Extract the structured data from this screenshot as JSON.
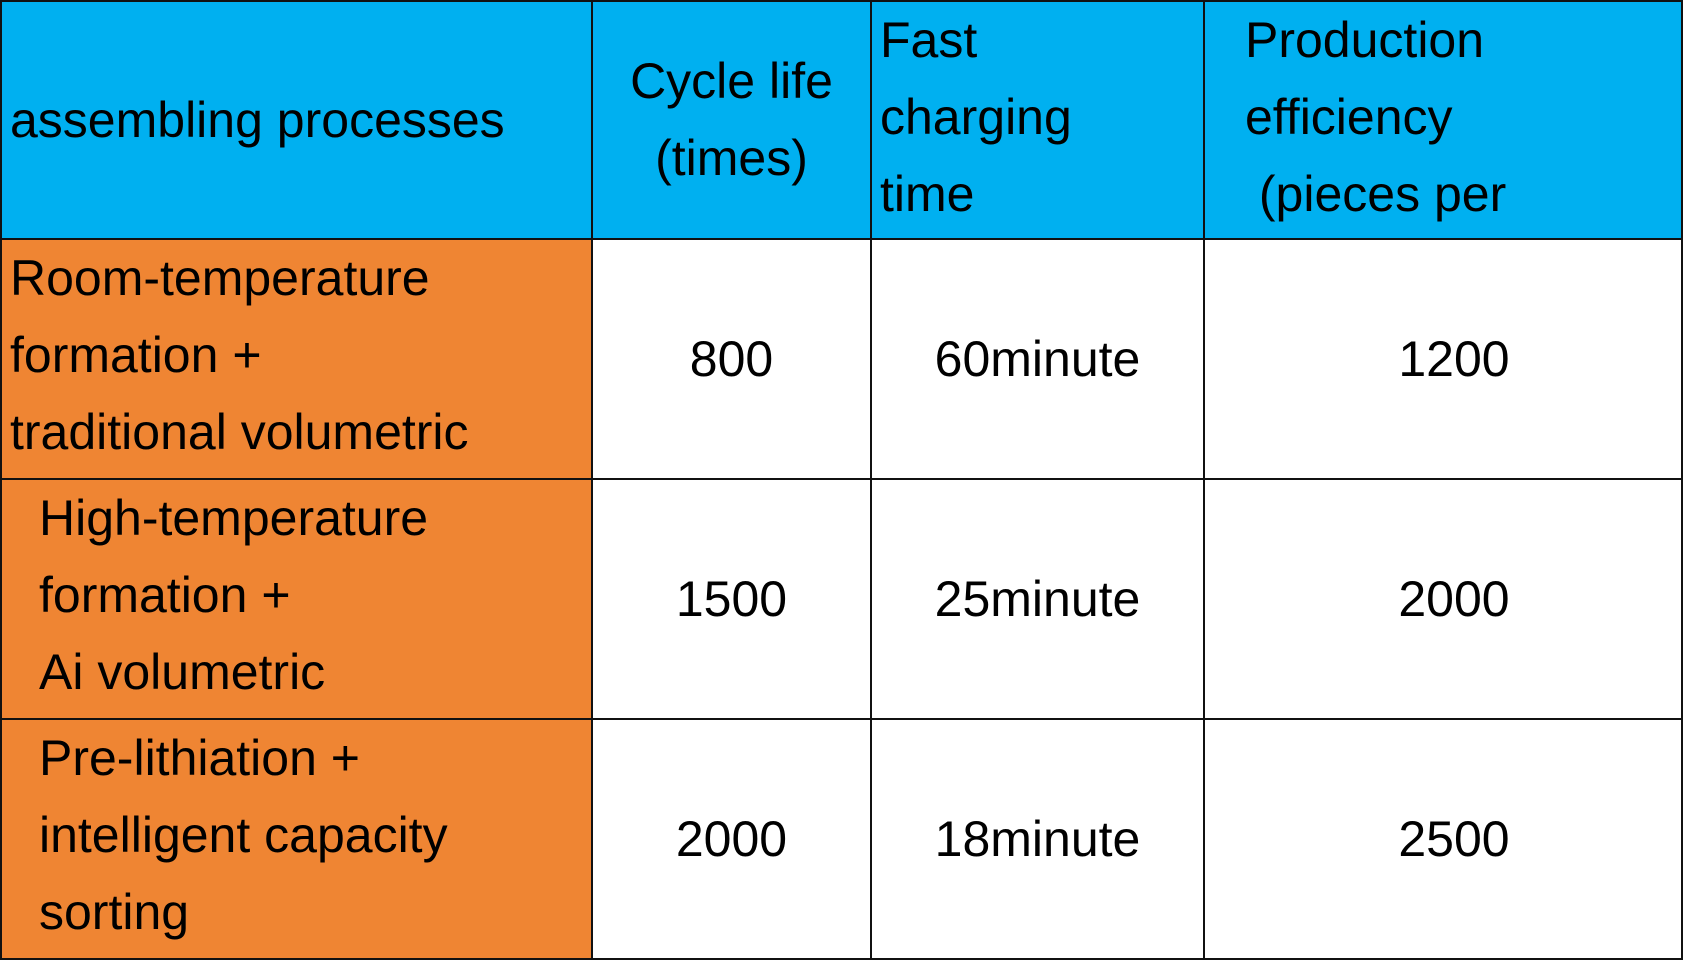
{
  "table": {
    "header": [
      [
        "assembling processes"
      ],
      [
        "Cycle life",
        "(times)"
      ],
      [
        "Fast",
        "charging",
        "time"
      ],
      [
        "Production",
        "efficiency",
        " (pieces per"
      ]
    ],
    "rows": [
      [
        [
          "Room-temperature",
          "formation +",
          "traditional volumetric"
        ],
        "800",
        "60minute",
        "1200"
      ],
      [
        [
          "High-temperature",
          "formation +",
          "Ai volumetric"
        ],
        "1500",
        "25minute",
        "2000"
      ],
      [
        [
          "Pre-lithiation +",
          "intelligent capacity",
          "sorting"
        ],
        "2000",
        "18minute",
        "2500"
      ]
    ]
  }
}
